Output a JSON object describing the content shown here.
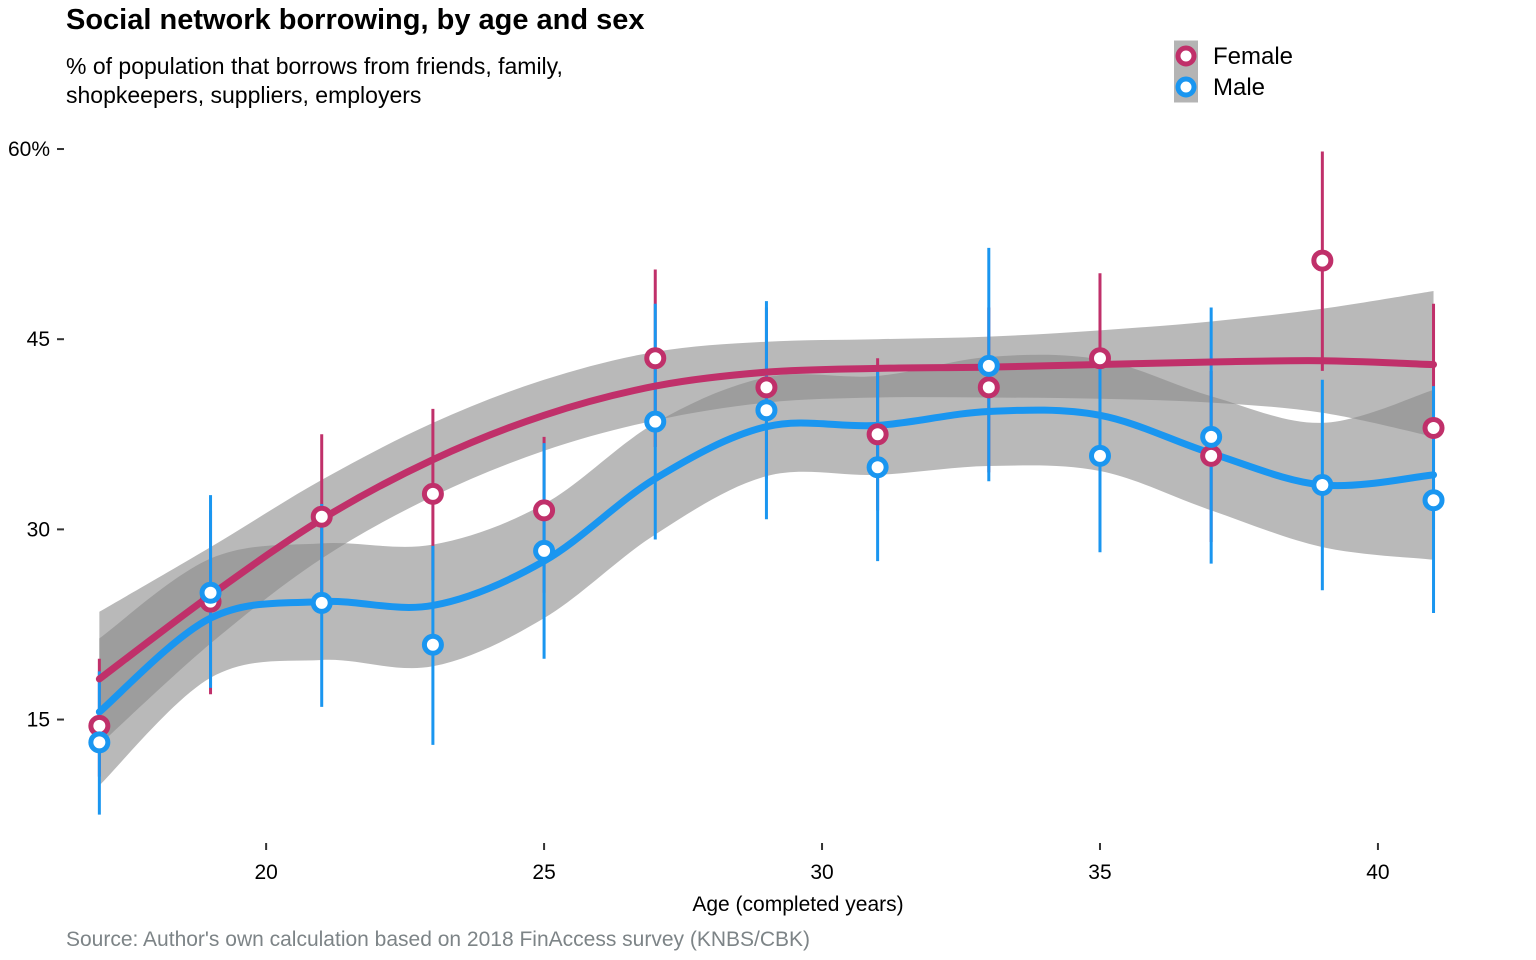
{
  "chart_data": {
    "type": "scatter",
    "title": "Social network borrowing, by age and sex",
    "subtitle_lines": [
      "% of population that borrows from friends, family,",
      "shopkeepers, suppliers, employers"
    ],
    "caption": "Source: Author's own calculation based on 2018 FinAccess survey (KNBS/CBK)",
    "xlabel": "Age (completed years)",
    "ylabel": "",
    "xlim": [
      16.4,
      41.8
    ],
    "ylim": [
      5.5,
      61.5
    ],
    "xticks": [
      20,
      25,
      30,
      35,
      40
    ],
    "xtick_labels": [
      "20",
      "25",
      "30",
      "35",
      "40"
    ],
    "yticks": [
      15,
      30,
      45,
      60
    ],
    "ytick_labels": [
      "15",
      "30",
      "45",
      "60%"
    ],
    "grid": false,
    "legend_position": "top-right",
    "series": [
      {
        "name": "Female",
        "color": "#c0306a",
        "points": [
          {
            "x": 17,
            "y": 14.5,
            "lo": 10.5,
            "hi": 19.8
          },
          {
            "x": 19,
            "y": 24.3,
            "lo": 17.0,
            "hi": 31.5
          },
          {
            "x": 21,
            "y": 31.0,
            "lo": 24.5,
            "hi": 37.5
          },
          {
            "x": 23,
            "y": 32.8,
            "lo": 26.0,
            "hi": 39.5
          },
          {
            "x": 25,
            "y": 31.5,
            "lo": 25.0,
            "hi": 37.3
          },
          {
            "x": 27,
            "y": 43.5,
            "lo": 36.5,
            "hi": 50.5
          },
          {
            "x": 29,
            "y": 41.2,
            "lo": 34.0,
            "hi": 47.5
          },
          {
            "x": 31,
            "y": 37.5,
            "lo": 31.5,
            "hi": 43.5
          },
          {
            "x": 33,
            "y": 41.2,
            "lo": 34.5,
            "hi": 47.5
          },
          {
            "x": 35,
            "y": 43.5,
            "lo": 37.0,
            "hi": 50.2
          },
          {
            "x": 37,
            "y": 35.8,
            "lo": 29.0,
            "hi": 42.5
          },
          {
            "x": 39,
            "y": 51.2,
            "lo": 42.5,
            "hi": 59.8
          },
          {
            "x": 41,
            "y": 38.0,
            "lo": 30.0,
            "hi": 47.8
          }
        ],
        "smooth": [
          {
            "x": 17,
            "y": 18.2,
            "lo": 13.0,
            "hi": 23.5
          },
          {
            "x": 19,
            "y": 24.8,
            "lo": 21.0,
            "hi": 28.6
          },
          {
            "x": 21,
            "y": 30.8,
            "lo": 27.7,
            "hi": 33.9
          },
          {
            "x": 23,
            "y": 35.5,
            "lo": 32.6,
            "hi": 38.4
          },
          {
            "x": 25,
            "y": 39.0,
            "lo": 36.2,
            "hi": 41.8
          },
          {
            "x": 27,
            "y": 41.3,
            "lo": 38.6,
            "hi": 44.0
          },
          {
            "x": 29,
            "y": 42.4,
            "lo": 40.0,
            "hi": 44.8
          },
          {
            "x": 31,
            "y": 42.7,
            "lo": 40.4,
            "hi": 45.0
          },
          {
            "x": 33,
            "y": 42.8,
            "lo": 40.4,
            "hi": 45.2
          },
          {
            "x": 35,
            "y": 43.0,
            "lo": 40.3,
            "hi": 45.7
          },
          {
            "x": 37,
            "y": 43.2,
            "lo": 40.0,
            "hi": 46.4
          },
          {
            "x": 39,
            "y": 43.3,
            "lo": 39.2,
            "hi": 47.4
          },
          {
            "x": 41,
            "y": 43.0,
            "lo": 37.3,
            "hi": 48.8
          }
        ]
      },
      {
        "name": "Male",
        "color": "#1a96f0",
        "points": [
          {
            "x": 17,
            "y": 13.2,
            "lo": 7.5,
            "hi": 18.8
          },
          {
            "x": 19,
            "y": 25.0,
            "lo": 17.5,
            "hi": 32.7
          },
          {
            "x": 21,
            "y": 24.2,
            "lo": 16.0,
            "hi": 32.0
          },
          {
            "x": 23,
            "y": 20.9,
            "lo": 13.0,
            "hi": 28.7
          },
          {
            "x": 25,
            "y": 28.3,
            "lo": 19.8,
            "hi": 36.8
          },
          {
            "x": 27,
            "y": 38.5,
            "lo": 29.2,
            "hi": 47.8
          },
          {
            "x": 29,
            "y": 39.4,
            "lo": 30.8,
            "hi": 48.0
          },
          {
            "x": 31,
            "y": 34.9,
            "lo": 27.5,
            "hi": 42.5
          },
          {
            "x": 33,
            "y": 42.9,
            "lo": 33.8,
            "hi": 52.2
          },
          {
            "x": 35,
            "y": 35.8,
            "lo": 28.2,
            "hi": 43.5
          },
          {
            "x": 37,
            "y": 37.3,
            "lo": 27.3,
            "hi": 47.5
          },
          {
            "x": 39,
            "y": 33.5,
            "lo": 25.2,
            "hi": 41.8
          },
          {
            "x": 41,
            "y": 32.3,
            "lo": 23.4,
            "hi": 41.3
          }
        ],
        "smooth": [
          {
            "x": 17,
            "y": 15.6,
            "lo": 9.8,
            "hi": 21.4
          },
          {
            "x": 19,
            "y": 23.0,
            "lo": 18.3,
            "hi": 27.7
          },
          {
            "x": 21,
            "y": 24.3,
            "lo": 19.7,
            "hi": 28.9
          },
          {
            "x": 23,
            "y": 24.0,
            "lo": 19.2,
            "hi": 28.8
          },
          {
            "x": 25,
            "y": 27.5,
            "lo": 23.0,
            "hi": 32.0
          },
          {
            "x": 27,
            "y": 34.0,
            "lo": 29.6,
            "hi": 38.4
          },
          {
            "x": 29,
            "y": 38.1,
            "lo": 34.2,
            "hi": 42.0
          },
          {
            "x": 31,
            "y": 38.2,
            "lo": 34.3,
            "hi": 42.1
          },
          {
            "x": 33,
            "y": 39.3,
            "lo": 35.0,
            "hi": 43.6
          },
          {
            "x": 35,
            "y": 39.0,
            "lo": 34.6,
            "hi": 43.4
          },
          {
            "x": 37,
            "y": 36.0,
            "lo": 31.5,
            "hi": 40.5
          },
          {
            "x": 39,
            "y": 33.5,
            "lo": 28.6,
            "hi": 38.4
          },
          {
            "x": 41,
            "y": 34.3,
            "lo": 27.6,
            "hi": 41.0
          }
        ]
      }
    ]
  }
}
